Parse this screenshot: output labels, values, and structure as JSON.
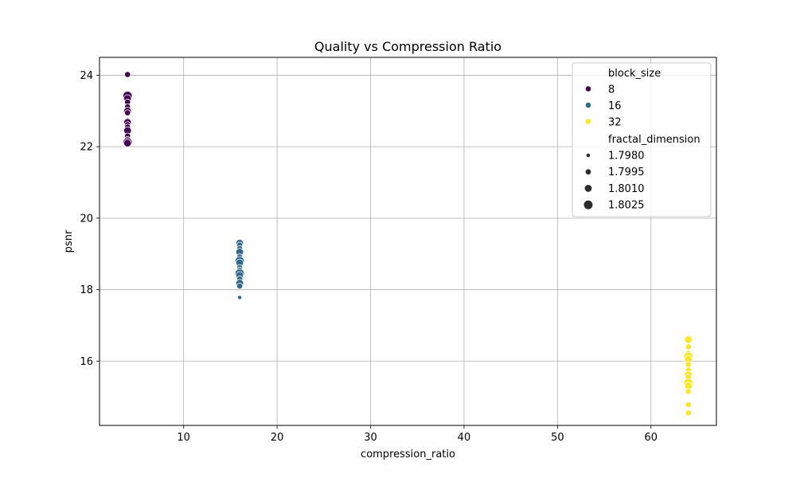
{
  "chart_data": {
    "type": "scatter",
    "title": "Quality vs Compression Ratio",
    "xlabel": "compression_ratio",
    "ylabel": "psnr",
    "xlim": [
      1.0,
      67.0
    ],
    "ylim": [
      14.2,
      24.5
    ],
    "xticks": [
      10,
      20,
      30,
      40,
      50,
      60
    ],
    "yticks": [
      16,
      18,
      20,
      22,
      24
    ],
    "grid": true,
    "legend_position": "top-right",
    "hue_legend": {
      "title": "block_size",
      "entries": [
        {
          "label": "8",
          "color": "#440154"
        },
        {
          "label": "16",
          "color": "#31688e"
        },
        {
          "label": "32",
          "color": "#fde725"
        }
      ]
    },
    "size_legend": {
      "title": "fractal_dimension",
      "entries": [
        {
          "label": "1.7980",
          "value": 1.798
        },
        {
          "label": "1.7995",
          "value": 1.7995
        },
        {
          "label": "1.8010",
          "value": 1.801
        },
        {
          "label": "1.8025",
          "value": 1.8025
        }
      ]
    },
    "series": [
      {
        "name": "8",
        "color": "#440154",
        "points": [
          {
            "x": 4,
            "y": 24.02,
            "fd": 1.7995
          },
          {
            "x": 4,
            "y": 23.42,
            "fd": 1.8025
          },
          {
            "x": 4,
            "y": 23.35,
            "fd": 1.801
          },
          {
            "x": 4,
            "y": 23.25,
            "fd": 1.7995
          },
          {
            "x": 4,
            "y": 23.12,
            "fd": 1.7995
          },
          {
            "x": 4,
            "y": 23.0,
            "fd": 1.801
          },
          {
            "x": 4,
            "y": 22.95,
            "fd": 1.7995
          },
          {
            "x": 4,
            "y": 22.75,
            "fd": 1.798
          },
          {
            "x": 4,
            "y": 22.68,
            "fd": 1.801
          },
          {
            "x": 4,
            "y": 22.62,
            "fd": 1.7995
          },
          {
            "x": 4,
            "y": 22.55,
            "fd": 1.7995
          },
          {
            "x": 4,
            "y": 22.45,
            "fd": 1.801
          },
          {
            "x": 4,
            "y": 22.3,
            "fd": 1.7995
          },
          {
            "x": 4,
            "y": 22.18,
            "fd": 1.801
          },
          {
            "x": 4,
            "y": 22.12,
            "fd": 1.8025
          },
          {
            "x": 4,
            "y": 22.1,
            "fd": 1.801
          }
        ]
      },
      {
        "name": "16",
        "color": "#31688e",
        "points": [
          {
            "x": 16,
            "y": 19.3,
            "fd": 1.801
          },
          {
            "x": 16,
            "y": 19.25,
            "fd": 1.7995
          },
          {
            "x": 16,
            "y": 19.15,
            "fd": 1.7995
          },
          {
            "x": 16,
            "y": 19.05,
            "fd": 1.801
          },
          {
            "x": 16,
            "y": 18.92,
            "fd": 1.7995
          },
          {
            "x": 16,
            "y": 18.8,
            "fd": 1.8025
          },
          {
            "x": 16,
            "y": 18.75,
            "fd": 1.801
          },
          {
            "x": 16,
            "y": 18.62,
            "fd": 1.7995
          },
          {
            "x": 16,
            "y": 18.55,
            "fd": 1.7995
          },
          {
            "x": 16,
            "y": 18.45,
            "fd": 1.8025
          },
          {
            "x": 16,
            "y": 18.4,
            "fd": 1.801
          },
          {
            "x": 16,
            "y": 18.3,
            "fd": 1.7995
          },
          {
            "x": 16,
            "y": 18.18,
            "fd": 1.801
          },
          {
            "x": 16,
            "y": 18.1,
            "fd": 1.7995
          },
          {
            "x": 16,
            "y": 17.78,
            "fd": 1.798
          }
        ]
      },
      {
        "name": "32",
        "color": "#fde725",
        "points": [
          {
            "x": 64,
            "y": 16.6,
            "fd": 1.801
          },
          {
            "x": 64,
            "y": 16.4,
            "fd": 1.7995
          },
          {
            "x": 64,
            "y": 16.22,
            "fd": 1.7995
          },
          {
            "x": 64,
            "y": 16.12,
            "fd": 1.8025
          },
          {
            "x": 64,
            "y": 16.05,
            "fd": 1.801
          },
          {
            "x": 64,
            "y": 15.9,
            "fd": 1.7995
          },
          {
            "x": 64,
            "y": 15.75,
            "fd": 1.7995
          },
          {
            "x": 64,
            "y": 15.62,
            "fd": 1.801
          },
          {
            "x": 64,
            "y": 15.55,
            "fd": 1.7995
          },
          {
            "x": 64,
            "y": 15.38,
            "fd": 1.8025
          },
          {
            "x": 64,
            "y": 15.3,
            "fd": 1.801
          },
          {
            "x": 64,
            "y": 15.15,
            "fd": 1.7995
          },
          {
            "x": 64,
            "y": 14.78,
            "fd": 1.7995
          },
          {
            "x": 64,
            "y": 14.55,
            "fd": 1.7995
          }
        ]
      }
    ]
  }
}
